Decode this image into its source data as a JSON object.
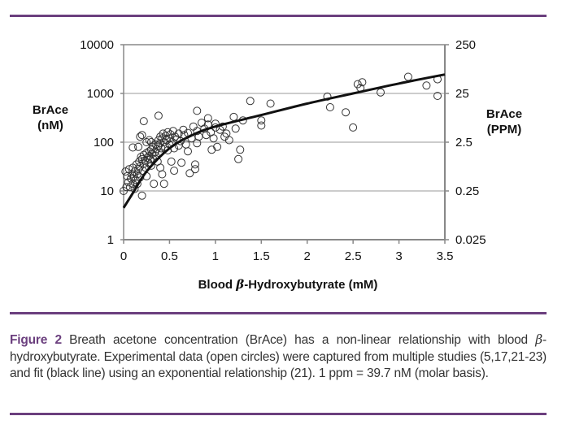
{
  "colors": {
    "rule": "#6b3f7e",
    "figure_label": "#6b3f7e",
    "axis": "#888888",
    "grid": "#bbbbbb",
    "marker": "#333333",
    "fit": "#111111"
  },
  "chart_data": {
    "type": "scatter",
    "title": "",
    "xlabel_prefix": "Blood ",
    "xlabel_beta": "β",
    "xlabel_suffix": "-Hydroxybutyrate (mM)",
    "ylabel_left": [
      "BrAce",
      "(nM)"
    ],
    "ylabel_right": [
      "BrAce",
      "(PPM)"
    ],
    "xlim": [
      0,
      3.5
    ],
    "ylim": [
      1,
      10000
    ],
    "yscale": "log",
    "x_ticks": [
      "0",
      "0.5",
      "1",
      "1.5",
      "2",
      "2.5",
      "3",
      "3.5"
    ],
    "x_tick_values": [
      0,
      0.5,
      1,
      1.5,
      2,
      2.5,
      3,
      3.5
    ],
    "y_ticks_left": [
      "10000",
      "1000",
      "100",
      "10",
      "1"
    ],
    "y_tick_values": [
      10000,
      1000,
      100,
      10,
      1
    ],
    "y_ticks_right": [
      "250",
      "25",
      "2.5",
      "0.25",
      "0.025"
    ],
    "grid": "horizontal",
    "series": [
      {
        "name": "Experimental data (open circles)",
        "marker": "open-circle",
        "points": [
          [
            0.02,
            25
          ],
          [
            0.04,
            20
          ],
          [
            0.05,
            15
          ],
          [
            0.06,
            28
          ],
          [
            0.07,
            12
          ],
          [
            0.08,
            18
          ],
          [
            0.09,
            22
          ],
          [
            0.1,
            14
          ],
          [
            0.1,
            30
          ],
          [
            0.11,
            20
          ],
          [
            0.12,
            25
          ],
          [
            0.12,
            11
          ],
          [
            0.13,
            17
          ],
          [
            0.14,
            35
          ],
          [
            0.15,
            22
          ],
          [
            0.15,
            14
          ],
          [
            0.16,
            28
          ],
          [
            0.17,
            40
          ],
          [
            0.18,
            32
          ],
          [
            0.18,
            19
          ],
          [
            0.19,
            50
          ],
          [
            0.2,
            8
          ],
          [
            0.2,
            45
          ],
          [
            0.21,
            26
          ],
          [
            0.22,
            55
          ],
          [
            0.22,
            36
          ],
          [
            0.23,
            42
          ],
          [
            0.24,
            30
          ],
          [
            0.25,
            60
          ],
          [
            0.25,
            20
          ],
          [
            0.26,
            48
          ],
          [
            0.27,
            38
          ],
          [
            0.28,
            65
          ],
          [
            0.28,
            52
          ],
          [
            0.29,
            44
          ],
          [
            0.3,
            70
          ],
          [
            0.3,
            33
          ],
          [
            0.31,
            58
          ],
          [
            0.32,
            80
          ],
          [
            0.32,
            46
          ],
          [
            0.33,
            14
          ],
          [
            0.34,
            62
          ],
          [
            0.35,
            90
          ],
          [
            0.35,
            52
          ],
          [
            0.36,
            72
          ],
          [
            0.37,
            40
          ],
          [
            0.38,
            110
          ],
          [
            0.38,
            85
          ],
          [
            0.39,
            60
          ],
          [
            0.4,
            130
          ],
          [
            0.4,
            95
          ],
          [
            0.4,
            30
          ],
          [
            0.41,
            75
          ],
          [
            0.42,
            120
          ],
          [
            0.42,
            22
          ],
          [
            0.43,
            150
          ],
          [
            0.44,
            100
          ],
          [
            0.44,
            14
          ],
          [
            0.45,
            80
          ],
          [
            0.46,
            135
          ],
          [
            0.47,
            110
          ],
          [
            0.48,
            160
          ],
          [
            0.48,
            68
          ],
          [
            0.5,
            120
          ],
          [
            0.5,
            90
          ],
          [
            0.51,
            145
          ],
          [
            0.52,
            40
          ],
          [
            0.53,
            100
          ],
          [
            0.54,
            170
          ],
          [
            0.55,
            75
          ],
          [
            0.55,
            26
          ],
          [
            0.56,
            130
          ],
          [
            0.58,
            115
          ],
          [
            0.6,
            150
          ],
          [
            0.6,
            85
          ],
          [
            0.62,
            105
          ],
          [
            0.63,
            38
          ],
          [
            0.65,
            180
          ],
          [
            0.66,
            140
          ],
          [
            0.68,
            90
          ],
          [
            0.7,
            155
          ],
          [
            0.7,
            65
          ],
          [
            0.72,
            23
          ],
          [
            0.74,
            120
          ],
          [
            0.76,
            210
          ],
          [
            0.78,
            35
          ],
          [
            0.78,
            28
          ],
          [
            0.8,
            170
          ],
          [
            0.8,
            95
          ],
          [
            0.82,
            130
          ],
          [
            0.85,
            250
          ],
          [
            0.88,
            190
          ],
          [
            0.9,
            140
          ],
          [
            0.92,
            230
          ],
          [
            0.95,
            160
          ],
          [
            0.96,
            70
          ],
          [
            0.98,
            120
          ],
          [
            1.0,
            200
          ],
          [
            1.0,
            240
          ],
          [
            1.02,
            80
          ],
          [
            1.05,
            180
          ],
          [
            1.08,
            210
          ],
          [
            1.1,
            130
          ],
          [
            1.12,
            150
          ],
          [
            1.15,
            110
          ],
          [
            1.2,
            330
          ],
          [
            1.22,
            190
          ],
          [
            1.25,
            45
          ],
          [
            1.27,
            70
          ],
          [
            1.3,
            280
          ],
          [
            1.38,
            700
          ],
          [
            1.5,
            280
          ],
          [
            1.5,
            220
          ],
          [
            1.6,
            620
          ],
          [
            2.22,
            860
          ],
          [
            2.25,
            520
          ],
          [
            2.42,
            410
          ],
          [
            2.5,
            200
          ],
          [
            2.55,
            1550
          ],
          [
            2.58,
            1300
          ],
          [
            2.6,
            1700
          ],
          [
            2.8,
            1050
          ],
          [
            3.1,
            2200
          ],
          [
            3.3,
            1450
          ],
          [
            3.42,
            1950
          ],
          [
            3.42,
            890
          ],
          [
            0.0,
            10
          ],
          [
            0.03,
            12
          ],
          [
            0.18,
            130
          ],
          [
            0.2,
            140
          ],
          [
            0.16,
            80
          ],
          [
            0.1,
            78
          ],
          [
            0.22,
            270
          ],
          [
            0.38,
            350
          ],
          [
            0.8,
            440
          ],
          [
            0.92,
            310
          ],
          [
            0.25,
            100
          ],
          [
            0.28,
            110
          ],
          [
            0.3,
            100
          ]
        ]
      },
      {
        "name": "fit (black line)",
        "type": "line",
        "fit": "exponential relationship",
        "points": [
          [
            0,
            4.5
          ],
          [
            0.1,
            9
          ],
          [
            0.25,
            25
          ],
          [
            0.5,
            75
          ],
          [
            0.75,
            140
          ],
          [
            1,
            210
          ],
          [
            1.5,
            360
          ],
          [
            2,
            620
          ],
          [
            2.5,
            1000
          ],
          [
            3,
            1600
          ],
          [
            3.5,
            2450
          ]
        ]
      }
    ]
  },
  "caption": {
    "label": "Figure 2",
    "text_1": " Breath acetone concentration (BrAce) has a non-linear relationship with blood ",
    "beta": "β",
    "text_2": "-hydroxybutyrate. Experimental data (open circles) were captured from multiple studies (5,17,21-23) and fit (black line) using an exponential relationship (21). 1 ppm = 39.7 nM (molar basis)."
  }
}
